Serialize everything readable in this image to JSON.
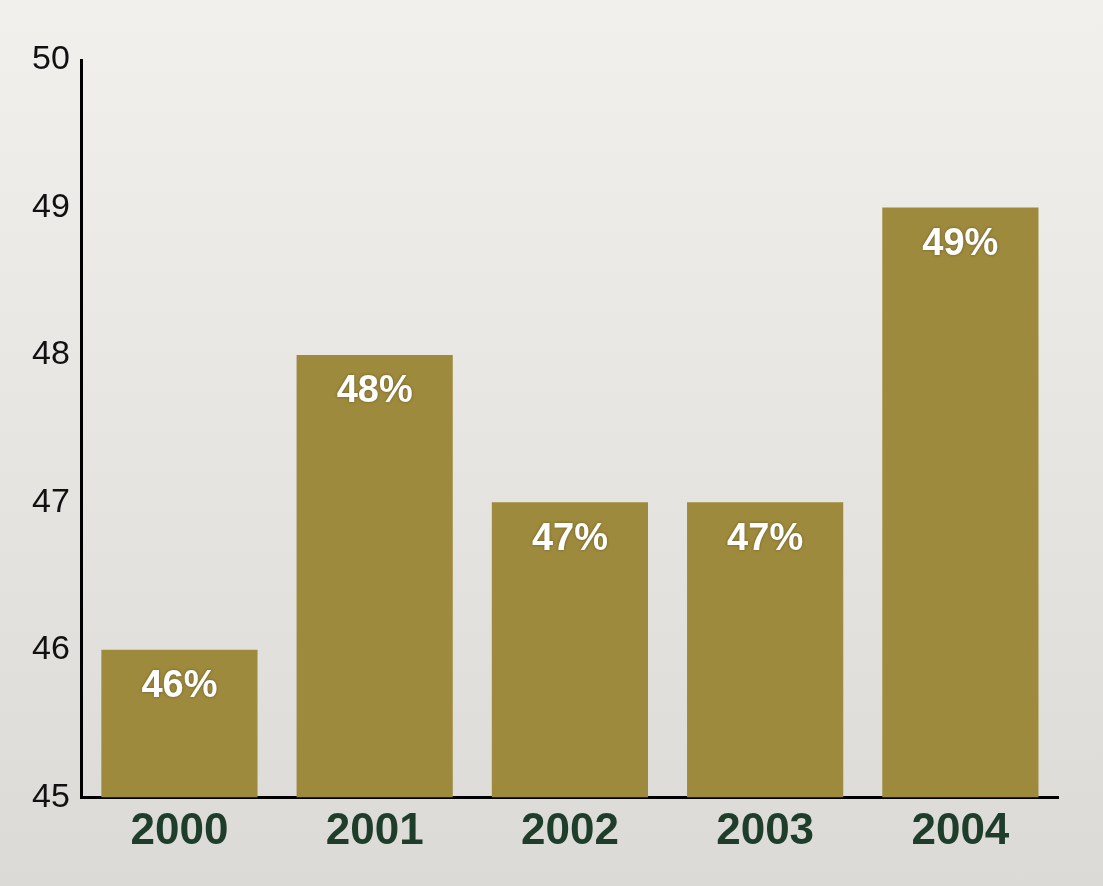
{
  "chart_data": {
    "type": "bar",
    "categories": [
      "2000",
      "2001",
      "2002",
      "2003",
      "2004"
    ],
    "values": [
      46,
      48,
      47,
      47,
      49
    ],
    "value_labels": [
      "46%",
      "48%",
      "47%",
      "47%",
      "49%"
    ],
    "data_labels": true,
    "color": "#9e8a3c",
    "ylim": [
      45,
      50
    ],
    "yticks": [
      45,
      46,
      47,
      48,
      49,
      50
    ],
    "grid": false
  }
}
